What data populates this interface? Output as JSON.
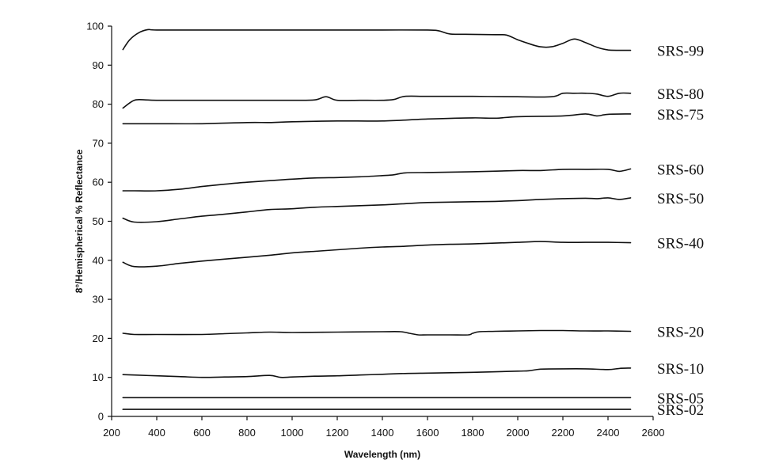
{
  "chart_data": {
    "type": "line",
    "title": "",
    "xlabel": "Wavelength (nm)",
    "ylabel": "8°/Hemispherical % Reflectance",
    "xlim": [
      200,
      2600
    ],
    "ylim": [
      0,
      100
    ],
    "xticks": [
      200,
      400,
      600,
      800,
      1000,
      1200,
      1400,
      1600,
      1800,
      2000,
      2200,
      2400,
      2600
    ],
    "yticks": [
      0,
      10,
      20,
      30,
      40,
      50,
      60,
      70,
      80,
      90,
      100
    ],
    "grid": false,
    "legend": "none (series labelled at right end of lines)",
    "series": [
      {
        "name": "SRS-99",
        "x": [
          250,
          280,
          320,
          360,
          400,
          600,
          800,
          1000,
          1200,
          1400,
          1600,
          1650,
          1700,
          1800,
          1900,
          1950,
          2000,
          2050,
          2100,
          2150,
          2200,
          2250,
          2300,
          2350,
          2400,
          2450,
          2500
        ],
        "values": [
          94,
          96.5,
          98.3,
          99.1,
          99,
          99,
          99,
          99,
          99,
          99,
          99,
          98.8,
          98,
          97.9,
          97.8,
          97.7,
          96.5,
          95.5,
          94.7,
          94.7,
          95.6,
          96.7,
          95.8,
          94.6,
          93.9,
          93.8,
          93.8
        ]
      },
      {
        "name": "SRS-80",
        "x": [
          250,
          300,
          350,
          400,
          600,
          800,
          1000,
          1100,
          1150,
          1200,
          1300,
          1400,
          1450,
          1500,
          1600,
          1800,
          2000,
          2150,
          2200,
          2250,
          2300,
          2350,
          2400,
          2450,
          2500
        ],
        "values": [
          79,
          81,
          81.1,
          81,
          81,
          81,
          81,
          81.1,
          81.9,
          81,
          81,
          81,
          81.2,
          82,
          82,
          82,
          81.9,
          81.9,
          82.8,
          82.8,
          82.8,
          82.6,
          82,
          82.8,
          82.8
        ]
      },
      {
        "name": "SRS-75",
        "x": [
          250,
          400,
          600,
          800,
          900,
          1000,
          1200,
          1400,
          1600,
          1800,
          1900,
          2000,
          2200,
          2300,
          2350,
          2400,
          2500
        ],
        "values": [
          75,
          75,
          75,
          75.3,
          75.3,
          75.5,
          75.7,
          75.7,
          76.2,
          76.5,
          76.4,
          76.8,
          77,
          77.5,
          77,
          77.4,
          77.5
        ]
      },
      {
        "name": "SRS-60",
        "x": [
          250,
          300,
          400,
          500,
          600,
          700,
          800,
          900,
          1000,
          1100,
          1200,
          1300,
          1400,
          1450,
          1500,
          1600,
          1800,
          2000,
          2100,
          2200,
          2300,
          2400,
          2450,
          2500
        ],
        "values": [
          57.8,
          57.8,
          57.8,
          58.2,
          58.9,
          59.5,
          60,
          60.4,
          60.8,
          61.1,
          61.2,
          61.4,
          61.7,
          61.9,
          62.4,
          62.5,
          62.7,
          63,
          63,
          63.3,
          63.3,
          63.3,
          62.8,
          63.4
        ]
      },
      {
        "name": "SRS-50",
        "x": [
          250,
          300,
          400,
          500,
          600,
          700,
          800,
          900,
          1000,
          1100,
          1200,
          1300,
          1400,
          1500,
          1600,
          1800,
          1900,
          2000,
          2100,
          2200,
          2300,
          2350,
          2400,
          2450,
          2500
        ],
        "values": [
          50.8,
          49.8,
          49.9,
          50.6,
          51.3,
          51.8,
          52.4,
          53,
          53.2,
          53.6,
          53.8,
          54,
          54.2,
          54.5,
          54.8,
          55,
          55.1,
          55.3,
          55.6,
          55.8,
          55.9,
          55.8,
          56,
          55.6,
          56
        ]
      },
      {
        "name": "SRS-40",
        "x": [
          250,
          300,
          400,
          500,
          600,
          700,
          800,
          900,
          1000,
          1100,
          1200,
          1300,
          1400,
          1500,
          1600,
          1700,
          1800,
          1900,
          2000,
          2100,
          2200,
          2300,
          2400,
          2500
        ],
        "values": [
          39.5,
          38.4,
          38.5,
          39.2,
          39.8,
          40.3,
          40.8,
          41.3,
          41.9,
          42.3,
          42.7,
          43.1,
          43.4,
          43.6,
          43.9,
          44.1,
          44.2,
          44.4,
          44.6,
          44.8,
          44.6,
          44.6,
          44.6,
          44.5
        ]
      },
      {
        "name": "SRS-20",
        "x": [
          250,
          300,
          400,
          600,
          700,
          800,
          900,
          1000,
          1200,
          1400,
          1480,
          1520,
          1560,
          1600,
          1700,
          1780,
          1800,
          1830,
          1900,
          2000,
          2100,
          2200,
          2300,
          2400,
          2500
        ],
        "values": [
          21.3,
          21,
          21,
          21,
          21.2,
          21.4,
          21.6,
          21.5,
          21.6,
          21.7,
          21.7,
          21.3,
          20.9,
          20.9,
          20.9,
          20.9,
          21.3,
          21.7,
          21.8,
          21.9,
          22,
          22,
          21.9,
          21.9,
          21.8
        ]
      },
      {
        "name": "SRS-10",
        "x": [
          250,
          300,
          400,
          500,
          600,
          700,
          800,
          900,
          950,
          1000,
          1100,
          1200,
          1300,
          1400,
          1500,
          1600,
          1800,
          2000,
          2050,
          2100,
          2200,
          2300,
          2400,
          2450,
          2500
        ],
        "values": [
          10.7,
          10.6,
          10.4,
          10.2,
          10,
          10.1,
          10.2,
          10.5,
          10,
          10.1,
          10.3,
          10.4,
          10.6,
          10.8,
          11,
          11.1,
          11.3,
          11.6,
          11.7,
          12.1,
          12.2,
          12.2,
          12,
          12.3,
          12.4
        ]
      },
      {
        "name": "SRS-05",
        "x": [
          250,
          2500
        ],
        "values": [
          4.8,
          4.8
        ]
      },
      {
        "name": "SRS-02",
        "x": [
          250,
          2500
        ],
        "values": [
          1.8,
          1.8
        ]
      }
    ]
  }
}
